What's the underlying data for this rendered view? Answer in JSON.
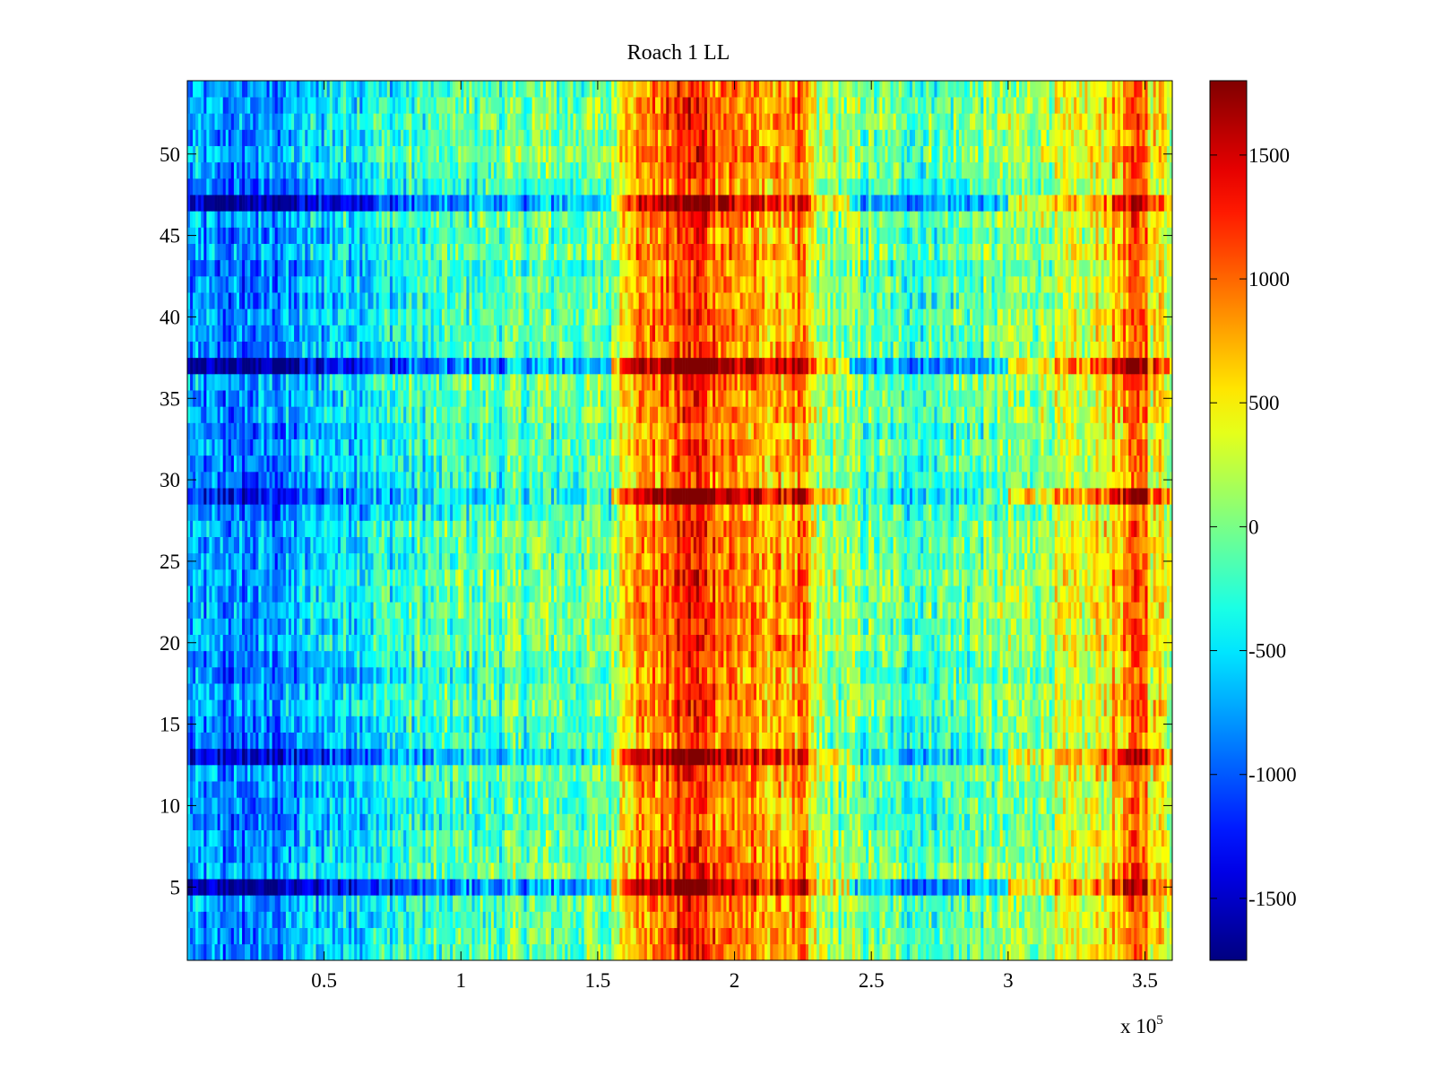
{
  "chart_data": {
    "type": "heatmap",
    "title": "Roach 1 LL",
    "xlabel": "",
    "ylabel": "",
    "x_exponent_label": "x 10",
    "x_exponent": "5",
    "xlim": [
      0,
      3.6
    ],
    "ylim": [
      0.5,
      54.5
    ],
    "x_units_multiplier": 100000,
    "rows": 54,
    "x_ticks": [
      0.5,
      1,
      1.5,
      2,
      2.5,
      3,
      3.5
    ],
    "x_tick_labels": [
      "0.5",
      "1",
      "1.5",
      "2",
      "2.5",
      "3",
      "3.5"
    ],
    "y_ticks": [
      5,
      10,
      15,
      20,
      25,
      30,
      35,
      40,
      45,
      50
    ],
    "y_tick_labels": [
      "5",
      "10",
      "15",
      "20",
      "25",
      "30",
      "35",
      "40",
      "45",
      "50"
    ],
    "colorbar": {
      "colormap": "jet",
      "clim": [
        -1750,
        1800
      ],
      "ticks": [
        -1500,
        -1000,
        -500,
        0,
        500,
        1000,
        1500
      ],
      "tick_labels": [
        "-1500",
        "-1000",
        "-500",
        "0",
        "500",
        "1000",
        "1500"
      ]
    },
    "column_profile": [
      {
        "x": 0.0,
        "value": -800
      },
      {
        "x": 0.2,
        "value": -900
      },
      {
        "x": 0.35,
        "value": -800
      },
      {
        "x": 0.5,
        "value": -550
      },
      {
        "x": 0.75,
        "value": -350
      },
      {
        "x": 1.0,
        "value": -200
      },
      {
        "x": 1.25,
        "value": -100
      },
      {
        "x": 1.55,
        "value": -50
      },
      {
        "x": 1.6,
        "value": 750
      },
      {
        "x": 1.75,
        "value": 950
      },
      {
        "x": 1.85,
        "value": 1300
      },
      {
        "x": 1.95,
        "value": 1000
      },
      {
        "x": 2.1,
        "value": 700
      },
      {
        "x": 2.25,
        "value": 800
      },
      {
        "x": 2.3,
        "value": 150
      },
      {
        "x": 2.5,
        "value": -100
      },
      {
        "x": 2.7,
        "value": -200
      },
      {
        "x": 3.0,
        "value": 0
      },
      {
        "x": 3.3,
        "value": 300
      },
      {
        "x": 3.5,
        "value": 1100
      },
      {
        "x": 3.52,
        "value": 500
      },
      {
        "x": 3.6,
        "value": 400
      }
    ],
    "row_modifiers": [
      {
        "y": 37,
        "value": 400,
        "note": "stronger extremes"
      },
      {
        "y": 47,
        "value": 300,
        "note": "stronger extremes"
      },
      {
        "y": 29,
        "value": 250,
        "note": "stronger extremes"
      },
      {
        "y": 5,
        "value": 350,
        "note": "stronger extremes"
      },
      {
        "y": 13,
        "value": 250,
        "note": "stronger extremes"
      }
    ]
  }
}
